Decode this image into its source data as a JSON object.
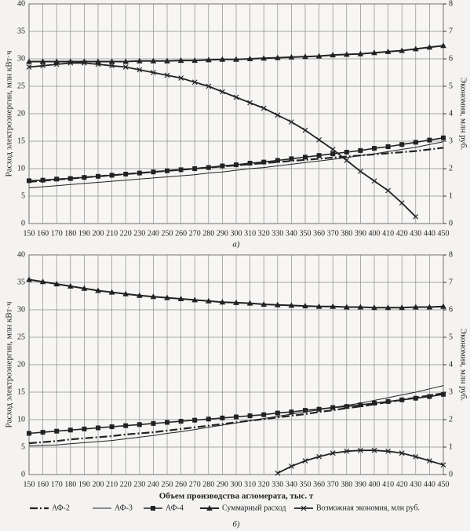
{
  "chart_data": [
    {
      "type": "line",
      "caption": "а)",
      "ylabel": "Расход электроэнергии, млн кВт·ч",
      "y2label": "Экономия, млн руб.",
      "x": [
        150,
        160,
        170,
        180,
        190,
        200,
        210,
        220,
        230,
        240,
        250,
        260,
        270,
        280,
        290,
        300,
        310,
        320,
        330,
        340,
        350,
        360,
        370,
        380,
        390,
        400,
        410,
        420,
        430,
        440,
        450
      ],
      "xlim": [
        150,
        450
      ],
      "xticks": [
        150,
        160,
        170,
        180,
        190,
        200,
        210,
        220,
        230,
        240,
        250,
        260,
        270,
        280,
        290,
        300,
        310,
        320,
        330,
        340,
        350,
        360,
        370,
        380,
        390,
        400,
        410,
        420,
        430,
        440,
        450
      ],
      "ylim": [
        0,
        40
      ],
      "yticks": [
        0,
        5,
        10,
        15,
        20,
        25,
        30,
        35,
        40
      ],
      "y2lim": [
        0,
        8
      ],
      "y2ticks": [
        0,
        1,
        2,
        3,
        4,
        5,
        6,
        7,
        8
      ],
      "grid": true,
      "series": [
        {
          "color": "#222",
          "dash": "10 3 2 3",
          "width": 2.2,
          "marker": "none",
          "values": [
            7.6,
            7.8,
            8.0,
            8.2,
            8.4,
            8.6,
            8.8,
            9.0,
            9.2,
            9.4,
            9.6,
            9.8,
            10.0,
            10.2,
            10.4,
            10.6,
            10.8,
            11.0,
            11.2,
            11.4,
            11.6,
            11.8,
            12.0,
            12.2,
            12.4,
            12.6,
            12.8,
            13.0,
            13.2,
            13.5,
            13.8
          ]
        },
        {
          "color": "#222",
          "dash": "none",
          "width": 1,
          "marker": "none",
          "values": [
            6.5,
            6.7,
            6.9,
            7.1,
            7.3,
            7.5,
            7.7,
            7.9,
            8.1,
            8.3,
            8.5,
            8.7,
            8.9,
            9.2,
            9.4,
            9.7,
            10.0,
            10.2,
            10.5,
            10.8,
            11.1,
            11.4,
            11.7,
            12.0,
            12.4,
            12.7,
            13.1,
            13.5,
            13.9,
            14.4,
            14.9
          ]
        },
        {
          "color": "#222",
          "dash": "none",
          "width": 1.6,
          "marker": "square",
          "values": [
            7.8,
            7.9,
            8.1,
            8.2,
            8.4,
            8.6,
            8.8,
            9.0,
            9.2,
            9.4,
            9.6,
            9.8,
            10.0,
            10.2,
            10.5,
            10.7,
            11.0,
            11.2,
            11.5,
            11.8,
            12.1,
            12.4,
            12.7,
            13.0,
            13.3,
            13.7,
            14.0,
            14.4,
            14.8,
            15.2,
            15.6
          ]
        },
        {
          "color": "#222",
          "dash": "none",
          "width": 2,
          "marker": "triangle",
          "values": [
            29.5,
            29.5,
            29.5,
            29.5,
            29.5,
            29.5,
            29.5,
            29.5,
            29.6,
            29.6,
            29.6,
            29.7,
            29.7,
            29.8,
            29.9,
            29.9,
            30.0,
            30.1,
            30.2,
            30.3,
            30.4,
            30.5,
            30.7,
            30.8,
            30.9,
            31.1,
            31.3,
            31.5,
            31.8,
            32.1,
            32.4
          ]
        },
        {
          "color": "#222",
          "dash": "none",
          "width": 1.8,
          "marker": "x",
          "axis": "y2",
          "values": [
            5.7,
            5.75,
            5.8,
            5.85,
            5.85,
            5.8,
            5.75,
            5.7,
            5.6,
            5.5,
            5.4,
            5.3,
            5.15,
            5.0,
            4.8,
            4.6,
            4.4,
            4.2,
            3.95,
            3.7,
            3.4,
            3.05,
            2.7,
            2.3,
            1.9,
            1.55,
            1.2,
            0.75,
            0.25,
            null,
            null
          ]
        }
      ]
    },
    {
      "type": "line",
      "caption": "б)",
      "xlabel": "Объем производства агломерата, тыс. т",
      "ylabel": "Расход электроэнергии, млн кВт·ч",
      "y2label": "Экономия, млн руб.",
      "x": [
        150,
        160,
        170,
        180,
        190,
        200,
        210,
        220,
        230,
        240,
        250,
        260,
        270,
        280,
        290,
        300,
        310,
        320,
        330,
        340,
        350,
        360,
        370,
        380,
        390,
        400,
        410,
        420,
        430,
        440,
        450
      ],
      "xlim": [
        150,
        450
      ],
      "xticks": [
        150,
        160,
        170,
        180,
        190,
        200,
        210,
        220,
        230,
        240,
        250,
        260,
        270,
        280,
        290,
        300,
        310,
        320,
        330,
        340,
        350,
        360,
        370,
        380,
        390,
        400,
        410,
        420,
        430,
        440,
        450
      ],
      "ylim": [
        0,
        40
      ],
      "yticks": [
        0,
        5,
        10,
        15,
        20,
        25,
        30,
        35,
        40
      ],
      "y2lim": [
        0,
        8
      ],
      "y2ticks": [
        0,
        1,
        2,
        3,
        4,
        5,
        6,
        7,
        8
      ],
      "grid": true,
      "legend": "bottom",
      "series": [
        {
          "name": "АФ-2",
          "color": "#222",
          "dash": "10 3 2 3",
          "width": 2.2,
          "marker": "none",
          "values": [
            5.7,
            5.9,
            6.1,
            6.4,
            6.6,
            6.8,
            7.0,
            7.3,
            7.5,
            7.7,
            8.0,
            8.3,
            8.6,
            8.9,
            9.2,
            9.5,
            9.8,
            10.1,
            10.4,
            10.7,
            11.0,
            11.4,
            11.7,
            12.1,
            12.4,
            12.8,
            13.2,
            13.6,
            14.0,
            14.4,
            14.8
          ]
        },
        {
          "name": "АФ-3",
          "color": "#222",
          "dash": "none",
          "width": 1,
          "marker": "none",
          "values": [
            5.2,
            5.3,
            5.4,
            5.6,
            5.8,
            6.0,
            6.2,
            6.5,
            6.8,
            7.1,
            7.5,
            7.8,
            8.2,
            8.6,
            9.0,
            9.4,
            9.8,
            10.2,
            10.6,
            11.0,
            11.4,
            11.8,
            12.2,
            12.6,
            13.0,
            13.5,
            14.0,
            14.5,
            15.0,
            15.6,
            16.2
          ]
        },
        {
          "name": "АФ-4",
          "color": "#222",
          "dash": "none",
          "width": 1.6,
          "marker": "square",
          "values": [
            7.5,
            7.7,
            7.9,
            8.1,
            8.3,
            8.5,
            8.7,
            8.9,
            9.1,
            9.3,
            9.5,
            9.7,
            9.9,
            10.1,
            10.3,
            10.5,
            10.7,
            10.9,
            11.2,
            11.4,
            11.7,
            11.9,
            12.2,
            12.4,
            12.7,
            13.0,
            13.3,
            13.6,
            13.9,
            14.2,
            14.6
          ]
        },
        {
          "name": "Суммарный расход",
          "color": "#222",
          "dash": "none",
          "width": 2,
          "marker": "triangle",
          "values": [
            35.5,
            35.1,
            34.7,
            34.3,
            33.9,
            33.5,
            33.2,
            32.9,
            32.6,
            32.4,
            32.2,
            32.0,
            31.8,
            31.6,
            31.4,
            31.3,
            31.2,
            31.0,
            30.9,
            30.8,
            30.7,
            30.6,
            30.6,
            30.5,
            30.5,
            30.4,
            30.4,
            30.4,
            30.5,
            30.5,
            30.6
          ]
        },
        {
          "name": "Возможная экономия, млн руб.",
          "color": "#222",
          "dash": "none",
          "width": 1.8,
          "marker": "x",
          "axis": "y2",
          "values": [
            null,
            null,
            null,
            null,
            null,
            null,
            null,
            null,
            null,
            null,
            null,
            null,
            null,
            null,
            null,
            null,
            null,
            null,
            0.05,
            0.3,
            0.5,
            0.65,
            0.78,
            0.85,
            0.88,
            0.88,
            0.85,
            0.78,
            0.65,
            0.5,
            0.35
          ]
        }
      ]
    }
  ]
}
